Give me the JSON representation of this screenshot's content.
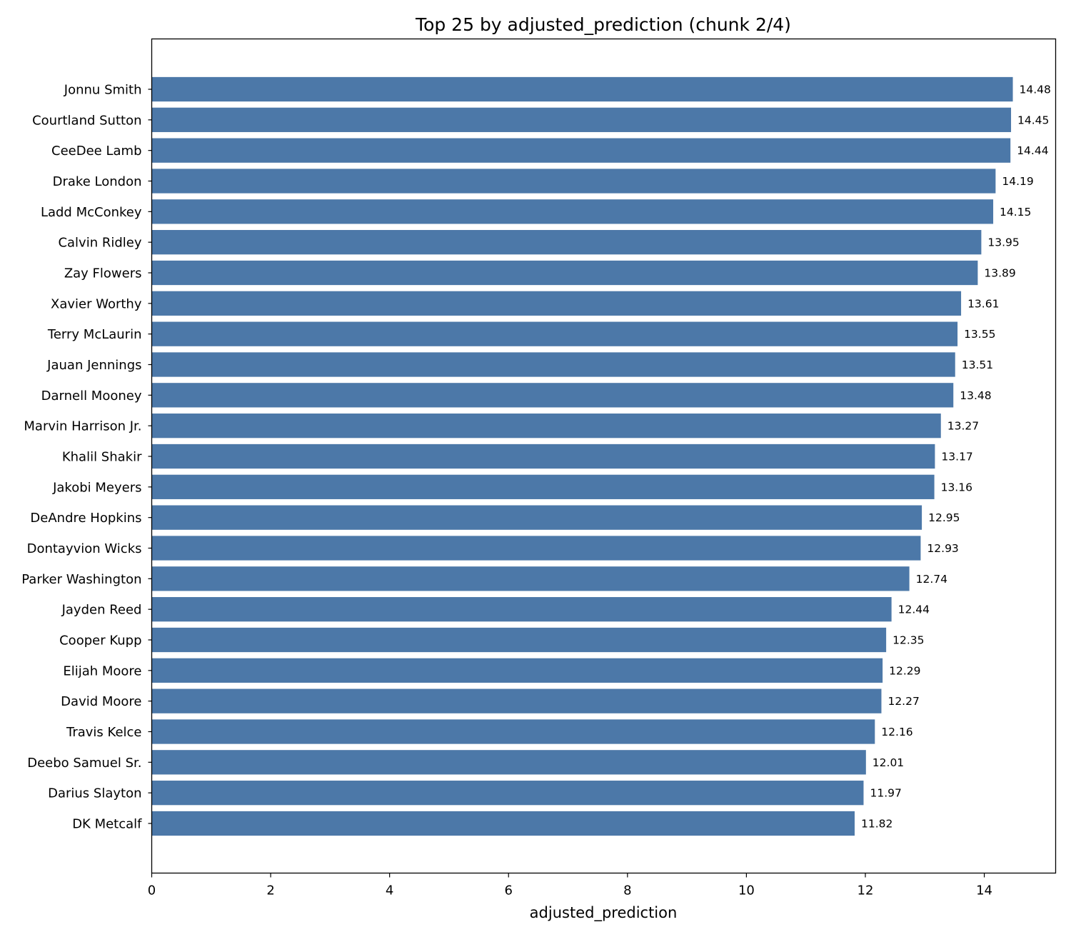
{
  "chart_data": {
    "type": "bar",
    "orientation": "horizontal",
    "title": "Top 25 by adjusted_prediction (chunk 2/4)",
    "xlabel": "adjusted_prediction",
    "ylabel": "",
    "xlim": [
      0,
      15.2
    ],
    "xticks": [
      0,
      2,
      4,
      6,
      8,
      10,
      12,
      14
    ],
    "xtick_labels": [
      "0",
      "2",
      "4",
      "6",
      "8",
      "10",
      "12",
      "14"
    ],
    "grid": false,
    "bar_color": "#4c78a8",
    "categories": [
      "Jonnu Smith",
      "Courtland Sutton",
      "CeeDee Lamb",
      "Drake London",
      "Ladd McConkey",
      "Calvin Ridley",
      "Zay Flowers",
      "Xavier Worthy",
      "Terry McLaurin",
      "Jauan Jennings",
      "Darnell Mooney",
      "Marvin Harrison Jr.",
      "Khalil Shakir",
      "Jakobi Meyers",
      "DeAndre Hopkins",
      "Dontayvion Wicks",
      "Parker Washington",
      "Jayden Reed",
      "Cooper Kupp",
      "Elijah Moore",
      "David Moore",
      "Travis Kelce",
      "Deebo Samuel Sr.",
      "Darius Slayton",
      "DK Metcalf"
    ],
    "values": [
      14.48,
      14.45,
      14.44,
      14.19,
      14.15,
      13.95,
      13.89,
      13.61,
      13.55,
      13.51,
      13.48,
      13.27,
      13.17,
      13.16,
      12.95,
      12.93,
      12.74,
      12.44,
      12.35,
      12.29,
      12.27,
      12.16,
      12.01,
      11.97,
      11.82
    ],
    "value_labels": [
      "14.48",
      "14.45",
      "14.44",
      "14.19",
      "14.15",
      "13.95",
      "13.89",
      "13.61",
      "13.55",
      "13.51",
      "13.48",
      "13.27",
      "13.17",
      "13.16",
      "12.95",
      "12.93",
      "12.74",
      "12.44",
      "12.35",
      "12.29",
      "12.27",
      "12.16",
      "12.01",
      "11.97",
      "11.82"
    ]
  }
}
